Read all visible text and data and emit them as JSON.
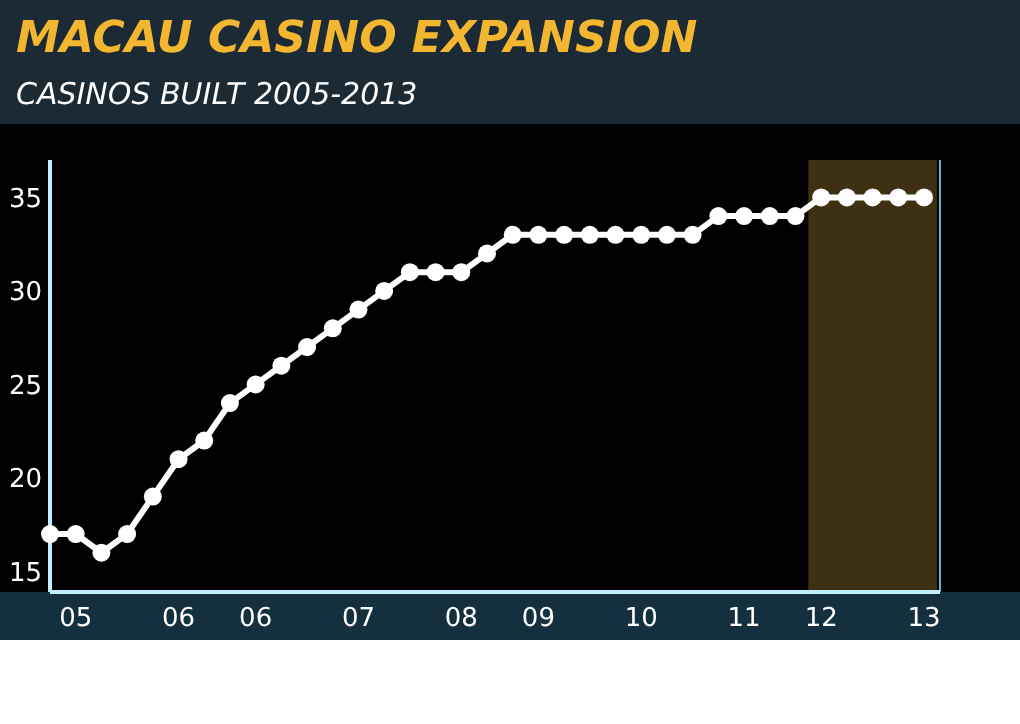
{
  "chart_data": {
    "type": "line",
    "title": "MACAU CASINO EXPANSION",
    "subtitle": "CASINOS BUILT 2005-2013",
    "categories": [
      null,
      "05",
      null,
      null,
      null,
      "06",
      null,
      null,
      "06",
      null,
      null,
      null,
      "07",
      null,
      null,
      null,
      "08",
      null,
      null,
      "09",
      null,
      null,
      null,
      "10",
      null,
      null,
      null,
      "11",
      null,
      null,
      "12",
      null,
      null,
      null,
      "13"
    ],
    "series": [
      {
        "color": "#ffffff",
        "values": [
          17,
          17,
          16,
          17,
          19,
          21,
          22,
          24,
          25,
          26,
          27,
          28,
          29,
          30,
          31,
          31,
          31,
          32,
          33,
          33,
          33,
          33,
          33,
          33,
          33,
          33,
          34,
          34,
          34,
          34,
          35,
          35,
          35,
          35,
          35
        ]
      }
    ],
    "ylim": [
      13.9,
      37
    ],
    "yticks": [
      15,
      20,
      25,
      30,
      35
    ],
    "bands": [
      {
        "axis": "x",
        "from": "12",
        "to": "13",
        "color": "#8a6a2a"
      }
    ],
    "marker": "circle",
    "line_style": "solid",
    "grid": false
  }
}
